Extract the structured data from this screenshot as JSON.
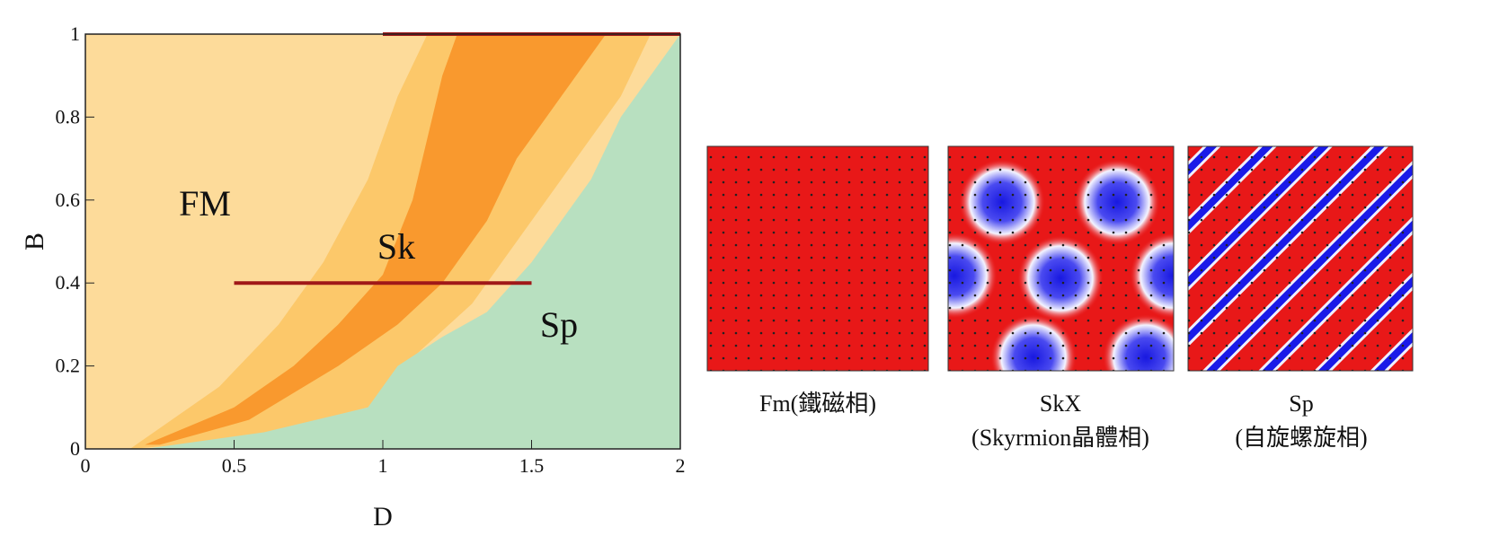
{
  "chart_data": {
    "type": "area",
    "xlabel": "D",
    "ylabel": "B",
    "xlim": [
      0,
      2
    ],
    "ylim": [
      0,
      1
    ],
    "xticks": [
      0,
      0.5,
      1,
      1.5,
      2
    ],
    "yticks": [
      0,
      0.2,
      0.4,
      0.6,
      0.8,
      1
    ],
    "background": "#fddb9a",
    "regions": [
      {
        "color": "#fcc86a",
        "x": [
          0.15,
          0.45,
          0.65,
          0.8,
          0.95,
          1.05,
          1.15,
          1.9,
          1.8,
          1.6,
          1.45,
          1.3,
          1.1,
          0.95,
          0.5
        ],
        "y": [
          0,
          0.15,
          0.3,
          0.45,
          0.65,
          0.85,
          1,
          1,
          0.85,
          0.65,
          0.5,
          0.35,
          0.22,
          0.1,
          0.02
        ]
      },
      {
        "color": "#f9992e",
        "x": [
          0.2,
          0.5,
          0.7,
          0.85,
          1.0,
          1.1,
          1.15,
          1.2,
          1.25,
          1.75,
          1.6,
          1.45,
          1.35,
          1.2,
          1.05,
          0.85,
          0.55,
          0.25
        ],
        "y": [
          0.01,
          0.1,
          0.2,
          0.3,
          0.42,
          0.6,
          0.75,
          0.9,
          1,
          1,
          0.85,
          0.7,
          0.55,
          0.4,
          0.3,
          0.2,
          0.07,
          0.01
        ]
      },
      {
        "color": "#b8e0c0",
        "x": [
          0.2,
          0.6,
          0.95,
          1.05,
          1.2,
          1.35,
          1.5,
          1.7,
          1.8,
          1.95,
          2,
          2
        ],
        "y": [
          0,
          0.04,
          0.1,
          0.2,
          0.27,
          0.33,
          0.45,
          0.65,
          0.8,
          0.95,
          1,
          0
        ]
      }
    ],
    "lines": [
      {
        "color": "#a01818",
        "x": [
          0.5,
          1.5
        ],
        "y": [
          0.4,
          0.4
        ]
      },
      {
        "color": "#a01818",
        "x": [
          1,
          2
        ],
        "y": [
          1,
          1
        ]
      }
    ],
    "annotations": [
      "FM",
      "Sk",
      "Sp"
    ]
  },
  "captions": [
    "Fm(鐵磁相)",
    "SkX",
    "(Skyrmion晶體相)",
    "Sp",
    "(自旋螺旋相)"
  ]
}
